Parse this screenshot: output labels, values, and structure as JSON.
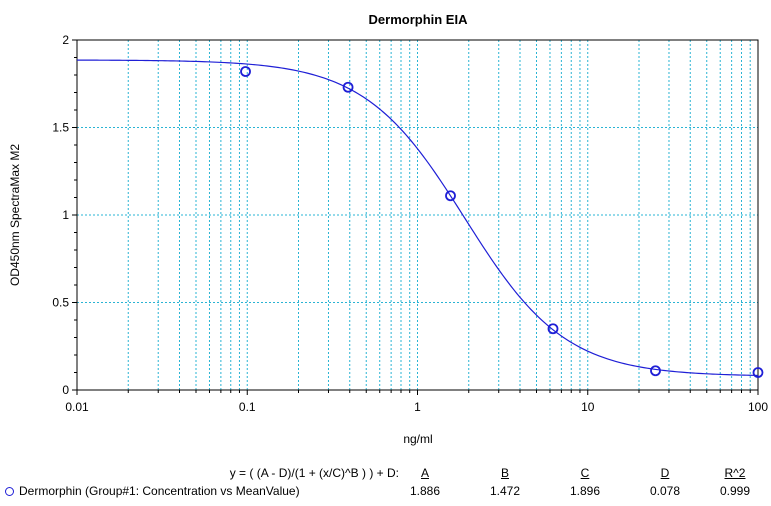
{
  "chart_data": {
    "type": "scatter",
    "title": "Dermorphin EIA",
    "xlabel": "ng/ml",
    "ylabel": "OD450nm SpectraMax M2",
    "x_scale": "log",
    "xlim": [
      0.01,
      100
    ],
    "ylim": [
      0,
      2
    ],
    "x_ticks": [
      "0.01",
      "0.1",
      "1",
      "10",
      "100"
    ],
    "y_ticks": [
      "0",
      "0.5",
      "1",
      "1.5",
      "2"
    ],
    "grid": true,
    "series": [
      {
        "name": "Dermorphin (Group#1: Concentration vs MeanValue)",
        "points": [
          {
            "x": 0.0977,
            "y": 1.82
          },
          {
            "x": 0.391,
            "y": 1.73
          },
          {
            "x": 1.5625,
            "y": 1.11
          },
          {
            "x": 6.25,
            "y": 0.35
          },
          {
            "x": 25,
            "y": 0.11
          },
          {
            "x": 100,
            "y": 0.1
          }
        ],
        "fit": {
          "A": 1.886,
          "B": 1.472,
          "C": 1.896,
          "D": 0.078
        }
      }
    ],
    "colors": {
      "series": "#1f1fd6",
      "grid": "#2ab4d4",
      "axis": "#000000"
    }
  },
  "fit_table": {
    "equation": "y = ( (A - D)/(1 + (x/C)^B ) ) + D:",
    "headers": [
      "A",
      "B",
      "C",
      "D",
      "R^2"
    ],
    "row_label": "Dermorphin (Group#1: Concentration vs MeanValue)",
    "values": [
      "1.886",
      "1.472",
      "1.896",
      "0.078",
      "0.999"
    ]
  }
}
